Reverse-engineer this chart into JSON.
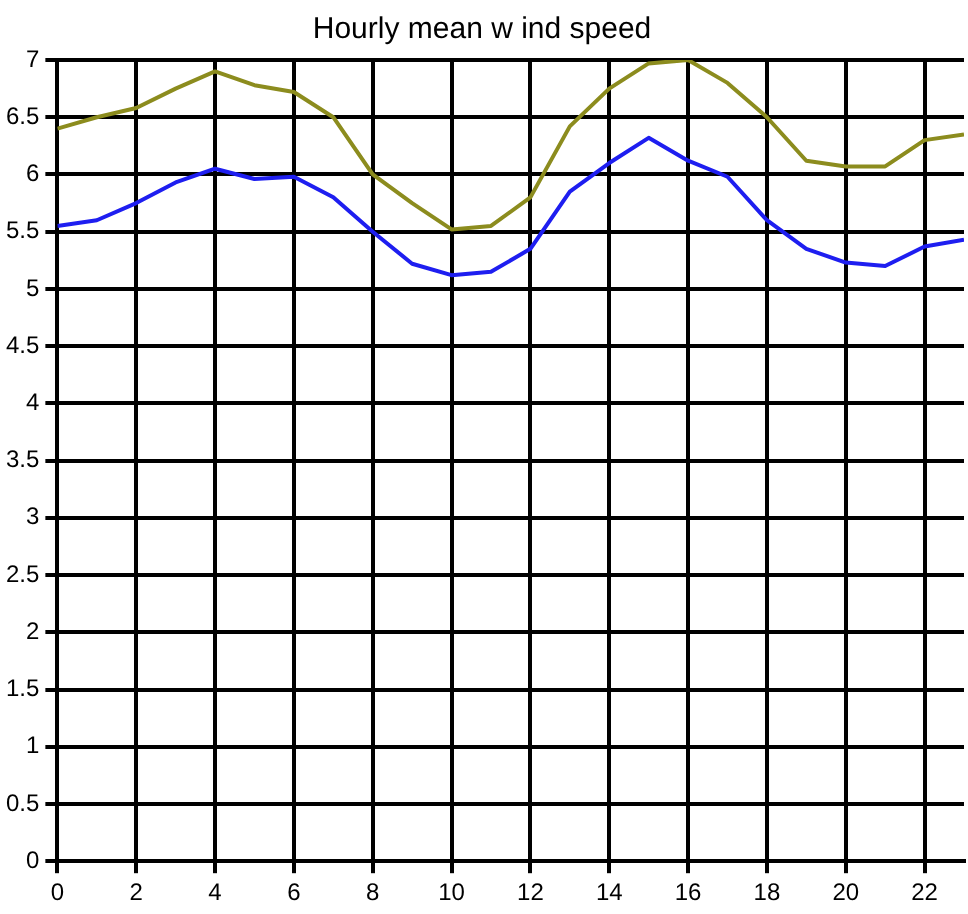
{
  "chart_data": {
    "type": "line",
    "title": "Hourly mean w ind speed",
    "x": [
      0,
      1,
      2,
      3,
      4,
      5,
      6,
      7,
      8,
      9,
      10,
      11,
      12,
      13,
      14,
      15,
      16,
      17,
      18,
      19,
      20,
      21,
      22,
      23
    ],
    "series": [
      {
        "color": "#8c8c1e",
        "values": [
          6.4,
          6.5,
          6.58,
          6.75,
          6.9,
          6.78,
          6.72,
          6.5,
          6.0,
          5.75,
          5.52,
          5.55,
          5.8,
          6.42,
          6.75,
          6.97,
          7.0,
          6.8,
          6.5,
          6.12,
          6.07,
          6.07,
          6.3,
          6.35
        ]
      },
      {
        "color": "#1e1ef0",
        "values": [
          5.55,
          5.6,
          5.75,
          5.93,
          6.05,
          5.96,
          5.98,
          5.8,
          5.5,
          5.22,
          5.12,
          5.15,
          5.35,
          5.85,
          6.1,
          6.32,
          6.12,
          5.98,
          5.6,
          5.35,
          5.23,
          5.2,
          5.37,
          5.43
        ]
      }
    ],
    "xlim": [
      0,
      23
    ],
    "xticks": [
      0,
      2,
      4,
      6,
      8,
      10,
      12,
      14,
      16,
      18,
      20,
      22
    ],
    "ylim": [
      0,
      7
    ],
    "yticks": [
      0,
      0.5,
      1,
      1.5,
      2,
      2.5,
      3,
      3.5,
      4,
      4.5,
      5,
      5.5,
      6,
      6.5,
      7
    ],
    "grid": true,
    "legend": false,
    "marker": "none",
    "line_style": "solid"
  }
}
